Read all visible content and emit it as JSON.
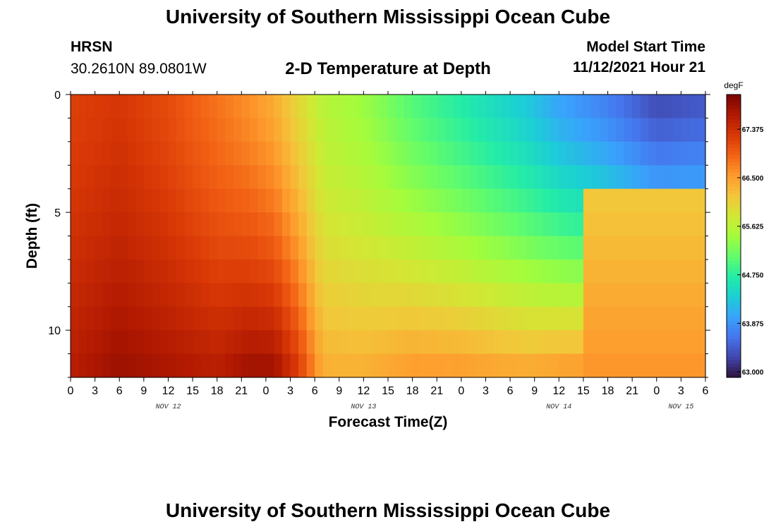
{
  "header": {
    "title": "University of Southern Mississippi Ocean Cube",
    "station": "HRSN",
    "coords": "30.2610N  89.0801W",
    "subtitle": "2-D Temperature at Depth",
    "model_start_label": "Model Start Time",
    "model_start_value": "11/12/2021 Hour 21",
    "footer_title": "University of Southern Mississippi Ocean Cube"
  },
  "chart_data": {
    "type": "heatmap",
    "title": "2-D Temperature at Depth",
    "xlabel": "Forecast Time(Z)",
    "ylabel": "Depth (ft)",
    "x_tick_labels": [
      "0",
      "3",
      "6",
      "9",
      "12",
      "15",
      "18",
      "21",
      "0",
      "3",
      "6",
      "9",
      "12",
      "15",
      "18",
      "21",
      "0",
      "3",
      "6",
      "9",
      "12",
      "15",
      "18",
      "21",
      "0",
      "3",
      "6"
    ],
    "x_range_hours": [
      0,
      78
    ],
    "day_labels": [
      {
        "label": "NOV 12",
        "hour": 12
      },
      {
        "label": "NOV 13",
        "hour": 36
      },
      {
        "label": "NOV 14",
        "hour": 60
      },
      {
        "label": "NOV 15",
        "hour": 75
      }
    ],
    "y_tick_labels": [
      "0",
      "5",
      "10"
    ],
    "y_tick_values": [
      0,
      5,
      10
    ],
    "ylim": [
      0,
      12
    ],
    "y_inverted": true,
    "colorbar": {
      "unit": "degF",
      "min": 62.9,
      "max": 68.0,
      "tick_labels": [
        "63.000",
        "63.875",
        "64.750",
        "65.625",
        "66.500",
        "67.375"
      ],
      "tick_values": [
        63.0,
        63.875,
        64.75,
        65.625,
        66.5,
        67.375
      ],
      "colors": [
        "#30123b",
        "#4145ab",
        "#4675ed",
        "#39a2fc",
        "#1bcfd4",
        "#24eca6",
        "#61fc6c",
        "#a4fc3b",
        "#d1e834",
        "#f3c63a",
        "#fe9b2d",
        "#f36315",
        "#d93806",
        "#b11901",
        "#7a0402"
      ]
    },
    "hour_step": 1,
    "depth_levels": 12,
    "values_description": "temperature in degF by forecast hour (columns) and depth level (rows, 0-12 ft)",
    "temperature_grid": "generated-from-columns",
    "profile_keyframes": [
      {
        "hour": 0,
        "surface": 67.2,
        "bottom": 67.6
      },
      {
        "hour": 6,
        "surface": 67.3,
        "bottom": 67.8
      },
      {
        "hour": 12,
        "surface": 67.1,
        "bottom": 67.7
      },
      {
        "hour": 18,
        "surface": 66.8,
        "bottom": 67.6
      },
      {
        "hour": 22,
        "surface": 66.6,
        "bottom": 67.8
      },
      {
        "hour": 25,
        "surface": 66.4,
        "bottom": 67.8
      },
      {
        "hour": 28,
        "surface": 66.0,
        "bottom": 67.3
      },
      {
        "hour": 31,
        "surface": 65.6,
        "bottom": 66.4
      },
      {
        "hour": 36,
        "surface": 65.4,
        "bottom": 66.4
      },
      {
        "hour": 42,
        "surface": 65.0,
        "bottom": 66.6
      },
      {
        "hour": 48,
        "surface": 64.7,
        "bottom": 66.6
      },
      {
        "hour": 56,
        "surface": 64.3,
        "bottom": 66.5
      },
      {
        "hour": 60,
        "surface": 64.0,
        "bottom": 66.6
      },
      {
        "hour": 66,
        "surface": 63.7,
        "bottom": 66.7
      },
      {
        "hour": 72,
        "surface": 63.3,
        "bottom": 66.6
      },
      {
        "hour": 78,
        "surface": 63.4,
        "bottom": 66.4
      }
    ]
  }
}
